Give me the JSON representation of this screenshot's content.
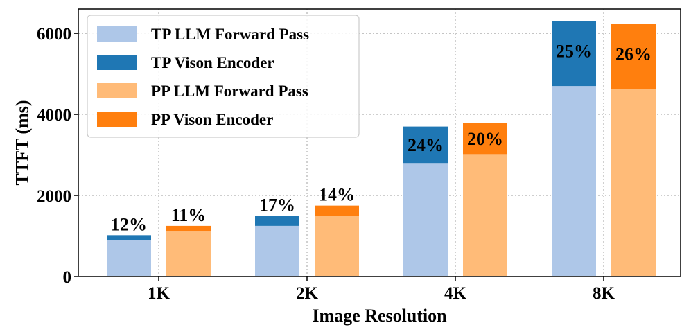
{
  "chart_data": {
    "type": "bar",
    "stacked": true,
    "grid": true,
    "xlabel": "Image Resolution",
    "ylabel": "TTFT (ms)",
    "ylim": [
      0,
      6600
    ],
    "yticks": [
      0,
      2000,
      4000,
      6000
    ],
    "categories": [
      "1K",
      "2K",
      "4K",
      "8K"
    ],
    "legend_position": "top-left",
    "groups": [
      {
        "name": "TP",
        "series": [
          {
            "name": "TP LLM Forward Pass",
            "color": "#aec7e8",
            "values": [
              900,
              1250,
              2800,
              4700
            ]
          },
          {
            "name": "TP Vison Encoder",
            "color": "#1f77b4",
            "values": [
              120,
              250,
              900,
              1600
            ]
          }
        ],
        "labels": [
          "12%",
          "17%",
          "24%",
          "25%"
        ],
        "label_positions": [
          "above",
          "above",
          "inside",
          "inside"
        ]
      },
      {
        "name": "PP",
        "series": [
          {
            "name": "PP LLM Forward Pass",
            "color": "#ffbb78",
            "values": [
              1110,
              1500,
              3020,
              4630
            ]
          },
          {
            "name": "PP Vison Encoder",
            "color": "#ff7f0e",
            "values": [
              140,
              250,
              760,
              1600
            ]
          }
        ],
        "labels": [
          "11%",
          "14%",
          "20%",
          "26%"
        ],
        "label_positions": [
          "above",
          "above",
          "inside",
          "inside"
        ]
      }
    ],
    "legend": [
      {
        "label": "TP LLM Forward Pass",
        "color": "#aec7e8"
      },
      {
        "label": "TP Vison Encoder",
        "color": "#1f77b4"
      },
      {
        "label": "PP LLM Forward Pass",
        "color": "#ffbb78"
      },
      {
        "label": "PP Vison Encoder",
        "color": "#ff7f0e"
      }
    ]
  }
}
